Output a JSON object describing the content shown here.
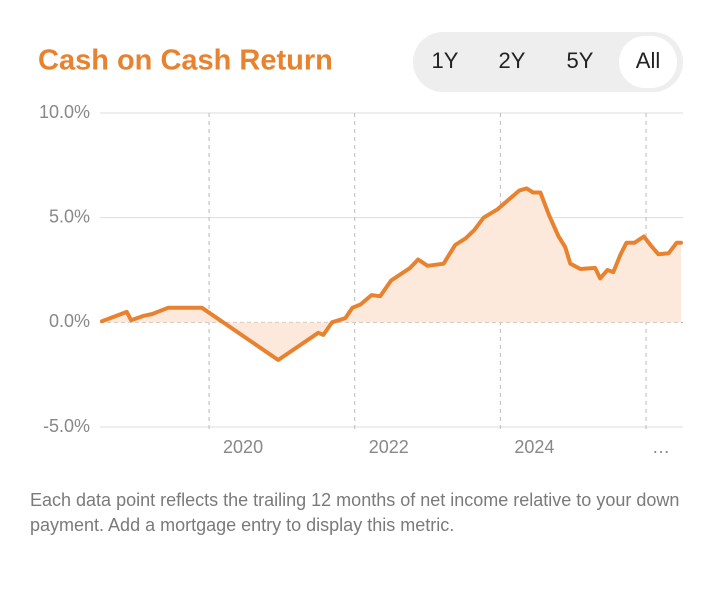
{
  "range_buttons": [
    "1Y",
    "2Y",
    "5Y",
    "All"
  ],
  "selected_range": 3,
  "chart_data": {
    "type": "area-line",
    "title": "Cash on Cash Return",
    "color": "#e8822f",
    "fill": "#fde9dc",
    "x": [
      2018.53,
      2018.87,
      2018.93,
      2019.09,
      2019.22,
      2019.44,
      2019.9,
      2020.95,
      2021.5,
      2021.57,
      2021.69,
      2021.87,
      2021.97,
      2022.08,
      2022.23,
      2022.35,
      2022.5,
      2022.76,
      2022.87,
      2023.0,
      2023.22,
      2023.38,
      2023.52,
      2023.64,
      2023.77,
      2023.96,
      2024.26,
      2024.36,
      2024.45,
      2024.55,
      2024.67,
      2024.8,
      2024.89,
      2024.96,
      2025.1,
      2025.3,
      2025.37,
      2025.47,
      2025.55,
      2025.65,
      2025.73,
      2025.84,
      2025.97,
      2026.06,
      2026.17,
      2026.31,
      2026.42,
      2026.48
    ],
    "values": [
      0.05,
      0.5,
      0.1,
      0.3,
      0.4,
      0.7,
      0.7,
      -1.8,
      -0.5,
      -0.6,
      0,
      0.2,
      0.7,
      0.85,
      1.3,
      1.25,
      2.0,
      2.6,
      3.0,
      2.7,
      2.8,
      3.7,
      4.0,
      4.4,
      5.0,
      5.4,
      6.3,
      6.4,
      6.2,
      6.2,
      5.1,
      4.1,
      3.6,
      2.8,
      2.55,
      2.6,
      2.1,
      2.5,
      2.4,
      3.25,
      3.8,
      3.8,
      4.1,
      3.7,
      3.25,
      3.3,
      3.8,
      3.8
    ],
    "xlim": [
      2018.53,
      2026.48
    ],
    "xticks": [
      2020,
      2022,
      2024,
      {
        "value": 2026,
        "label": "…"
      }
    ],
    "ylim": [
      -5,
      10
    ],
    "yticks": [
      {
        "value": -5,
        "label": "-5.0%"
      },
      {
        "value": 0,
        "label": "0.0%"
      },
      {
        "value": 5,
        "label": "5.0%"
      },
      {
        "value": 10,
        "label": "10.0%"
      }
    ],
    "grid": true
  },
  "footnote": "Each data point reflects the trailing 12 months of net income relative to your down payment. Add a mortgage entry to display this metric."
}
